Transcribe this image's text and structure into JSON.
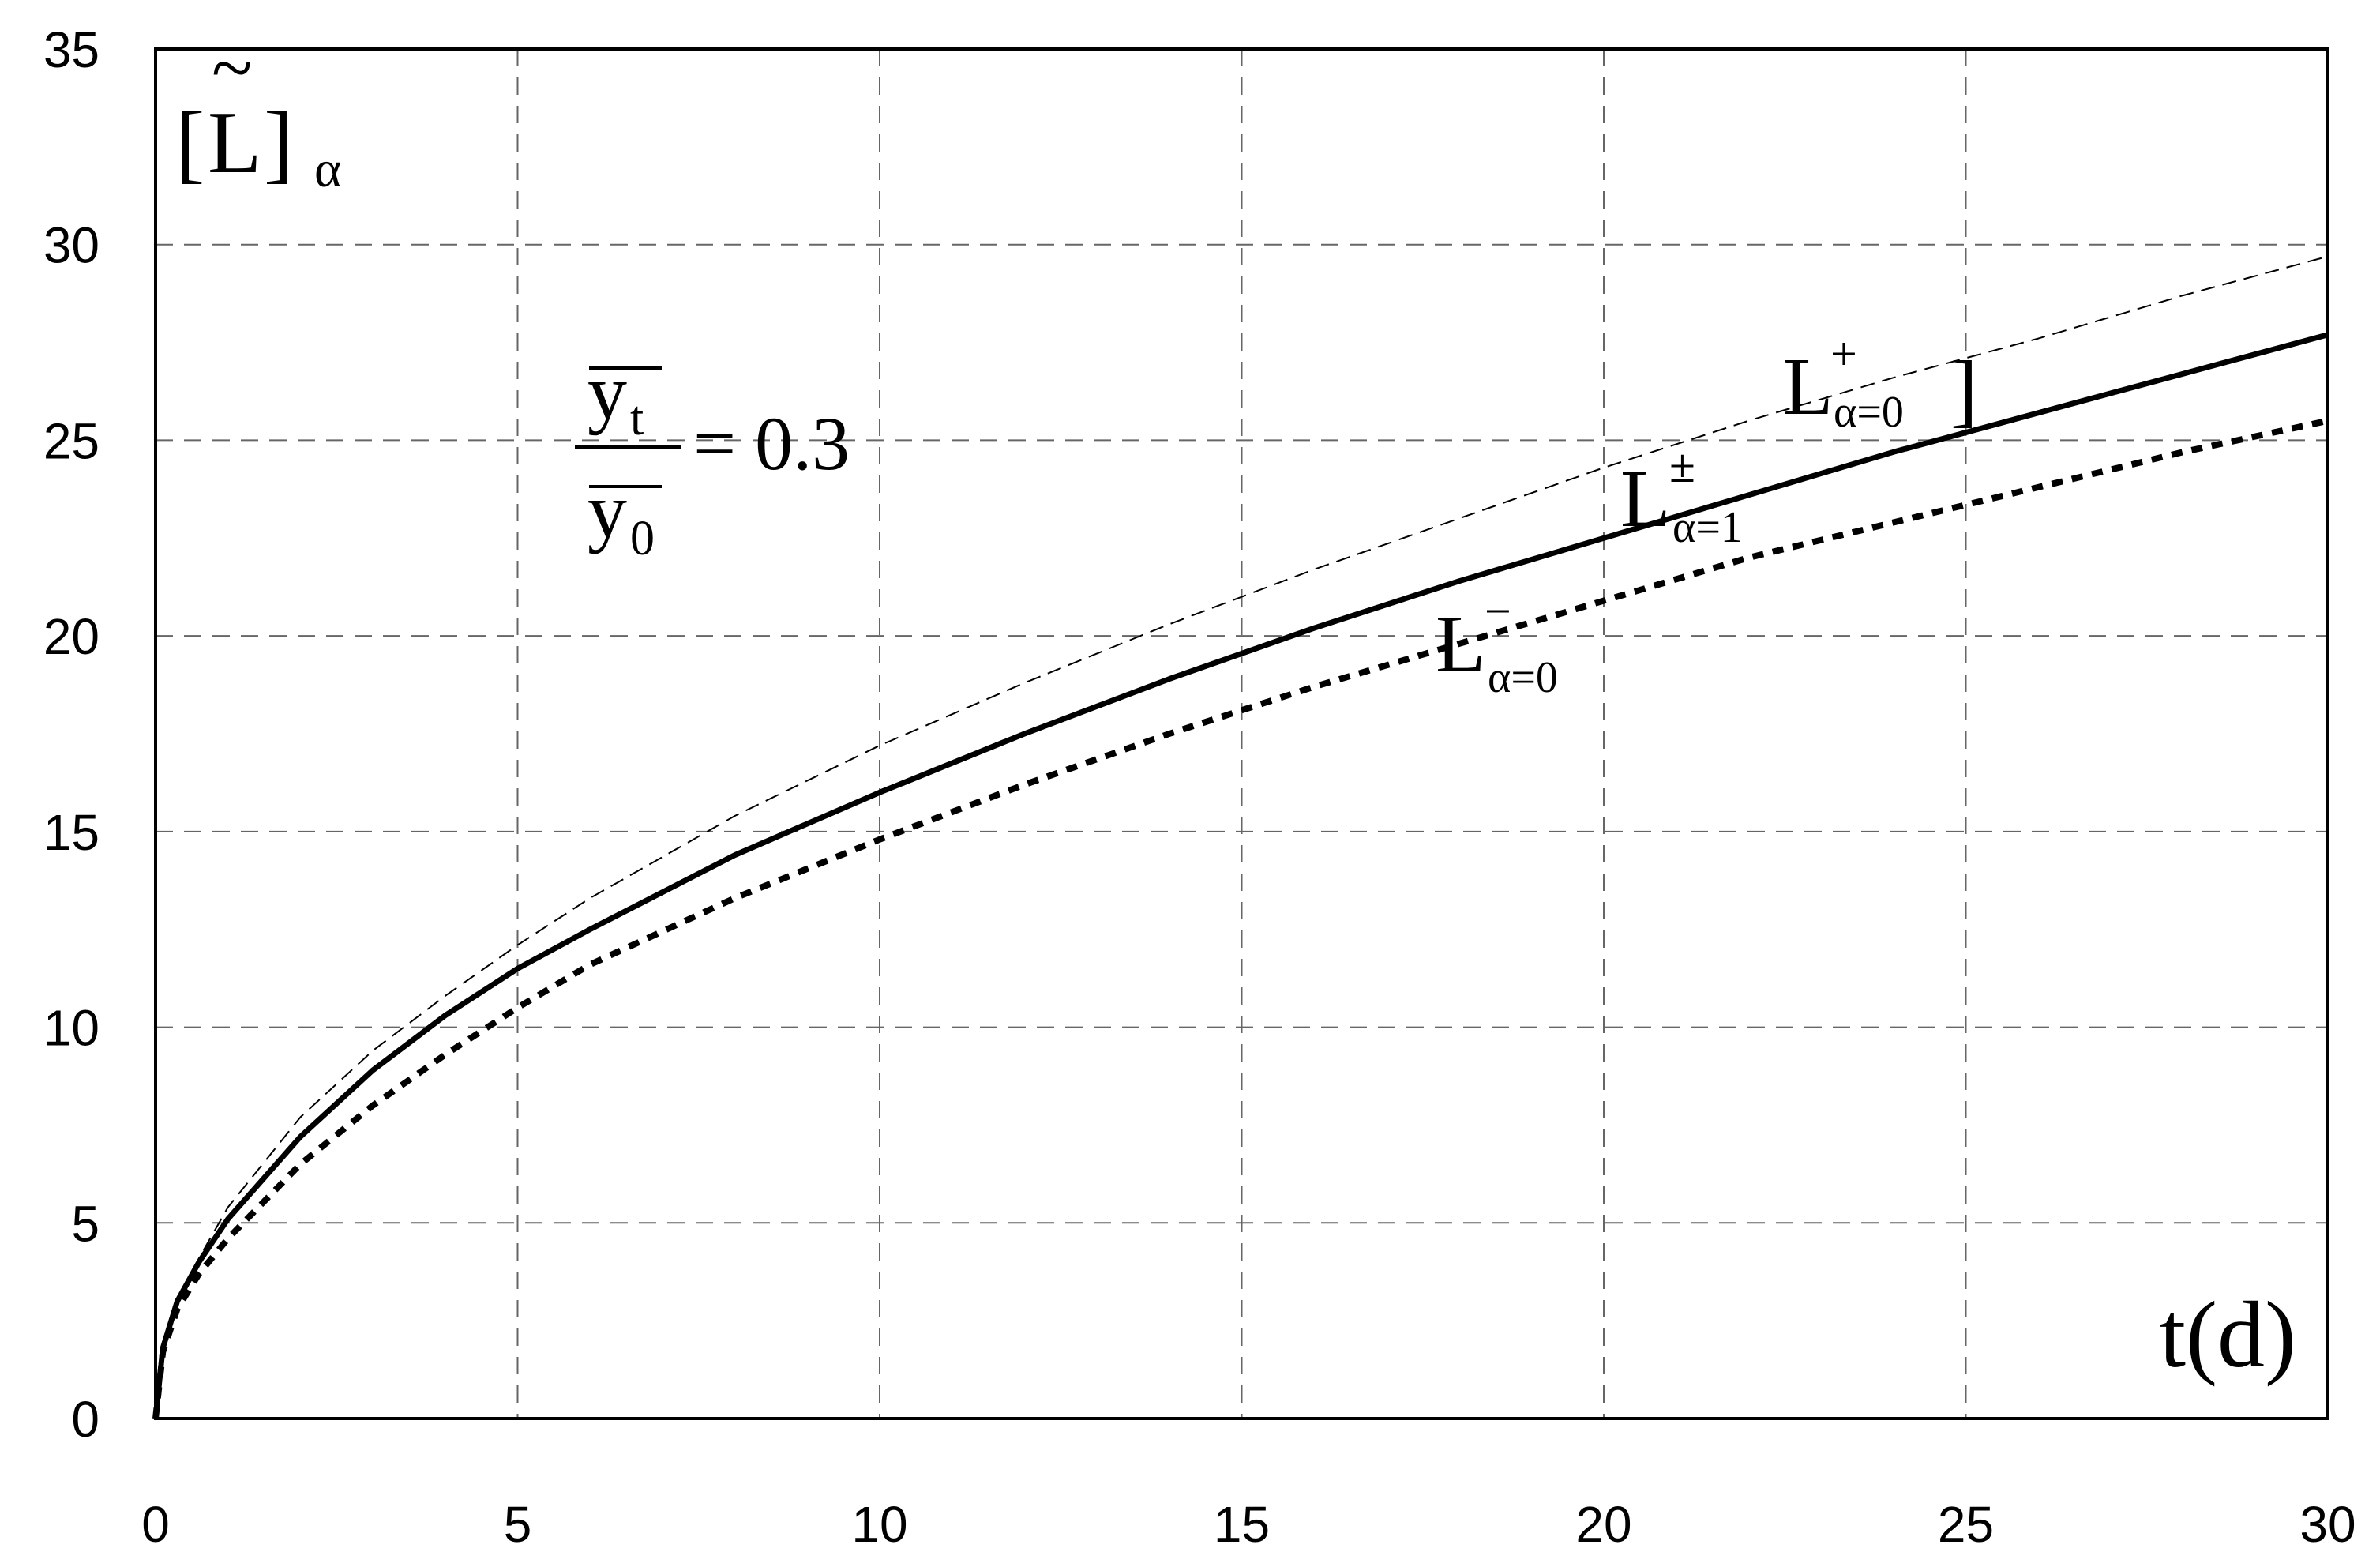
{
  "chart_data": {
    "type": "line",
    "xlim": [
      0,
      30
    ],
    "ylim": [
      0,
      35
    ],
    "x_ticks": [
      "0",
      "5",
      "10",
      "15",
      "20",
      "25",
      "30"
    ],
    "y_ticks": [
      "0",
      "5",
      "10",
      "15",
      "20",
      "25",
      "30",
      "35"
    ],
    "grid": true,
    "x_label": "t(d)",
    "y_label": {
      "open": "[",
      "letter": "L",
      "tilde": "~",
      "close": "]",
      "sub": "α"
    },
    "annotation": {
      "num": "y",
      "num_sub": "t",
      "den": "y",
      "den_sub": "0",
      "rhs": "= 0.3"
    },
    "series": [
      {
        "label": {
          "base": "L",
          "sup": "+",
          "sub": "α=0",
          "bracket": "]"
        },
        "style": "thin-dashed",
        "x": [
          0,
          0.1,
          0.3,
          0.6,
          1,
          2,
          3,
          4,
          5,
          6,
          8,
          10,
          12,
          14,
          16,
          18,
          20,
          22,
          24,
          26,
          28,
          30
        ],
        "y": [
          0,
          1.7,
          2.9,
          4.1,
          5.4,
          7.7,
          9.4,
          10.8,
          12.1,
          13.3,
          15.4,
          17.2,
          18.8,
          20.3,
          21.7,
          23.0,
          24.3,
          25.5,
          26.6,
          27.6,
          28.7,
          29.7
        ]
      },
      {
        "label": {
          "base": "L",
          "sup": "±",
          "sub": "α=1"
        },
        "style": "solid",
        "x": [
          0,
          0.1,
          0.3,
          0.6,
          1,
          2,
          3,
          4,
          5,
          6,
          8,
          10,
          12,
          14,
          16,
          18,
          20,
          22,
          24,
          26,
          28,
          30
        ],
        "y": [
          0,
          1.8,
          3.0,
          4.0,
          5.1,
          7.2,
          8.9,
          10.3,
          11.5,
          12.5,
          14.4,
          16.0,
          17.5,
          18.9,
          20.2,
          21.4,
          22.5,
          23.6,
          24.7,
          25.7,
          26.7,
          27.7
        ]
      },
      {
        "label": {
          "base": "L",
          "sup": "−",
          "sub": "α=0"
        },
        "style": "dotted",
        "x": [
          0,
          0.1,
          0.3,
          0.6,
          1,
          2,
          3,
          4,
          5,
          6,
          8,
          10,
          12,
          14,
          16,
          18,
          20,
          22,
          24,
          26,
          28,
          30
        ],
        "y": [
          0,
          1.7,
          2.8,
          3.7,
          4.6,
          6.5,
          8.0,
          9.3,
          10.5,
          11.6,
          13.3,
          14.8,
          16.2,
          17.5,
          18.7,
          19.8,
          20.9,
          22.0,
          22.9,
          23.8,
          24.7,
          25.5
        ]
      }
    ]
  }
}
